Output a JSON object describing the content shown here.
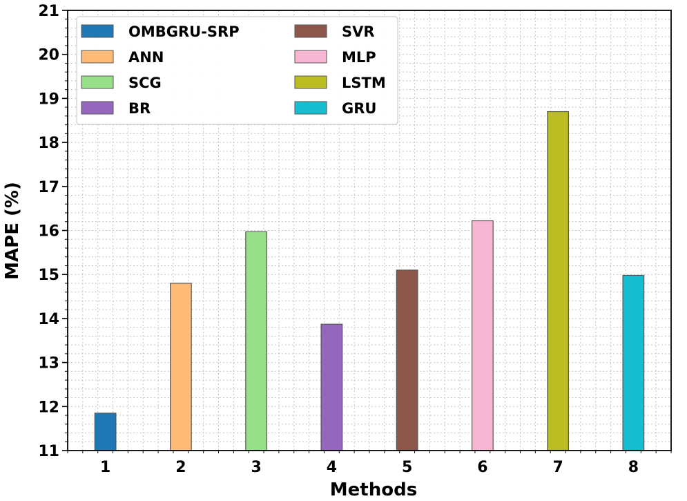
{
  "chart_data": {
    "type": "bar",
    "categories": [
      "1",
      "2",
      "3",
      "4",
      "5",
      "6",
      "7",
      "8"
    ],
    "series": [
      {
        "name": "OMBGRU-SRP",
        "category": "1",
        "value": 11.85,
        "color": "#1f77b4"
      },
      {
        "name": "ANN",
        "category": "2",
        "value": 14.8,
        "color": "#ffbb78"
      },
      {
        "name": "SCG",
        "category": "3",
        "value": 15.97,
        "color": "#98df8a"
      },
      {
        "name": "BR",
        "category": "4",
        "value": 13.87,
        "color": "#9467bd"
      },
      {
        "name": "SVR",
        "category": "5",
        "value": 15.1,
        "color": "#8c564b"
      },
      {
        "name": "MLP",
        "category": "6",
        "value": 16.22,
        "color": "#f7b6d2"
      },
      {
        "name": "LSTM",
        "category": "7",
        "value": 18.7,
        "color": "#bcbd22"
      },
      {
        "name": "GRU",
        "category": "8",
        "value": 14.98,
        "color": "#17becf"
      }
    ],
    "title": "",
    "xlabel": "Methods",
    "ylabel": "MAPE (%)",
    "ylim": [
      11,
      21
    ],
    "yticks": [
      "11",
      "12",
      "13",
      "14",
      "15",
      "16",
      "17",
      "18",
      "19",
      "20",
      "21"
    ],
    "grid": true,
    "legend": {
      "position": "top-left",
      "columns": 2,
      "order": [
        "OMBGRU-SRP",
        "ANN",
        "SCG",
        "BR",
        "SVR",
        "MLP",
        "LSTM",
        "GRU"
      ]
    }
  }
}
